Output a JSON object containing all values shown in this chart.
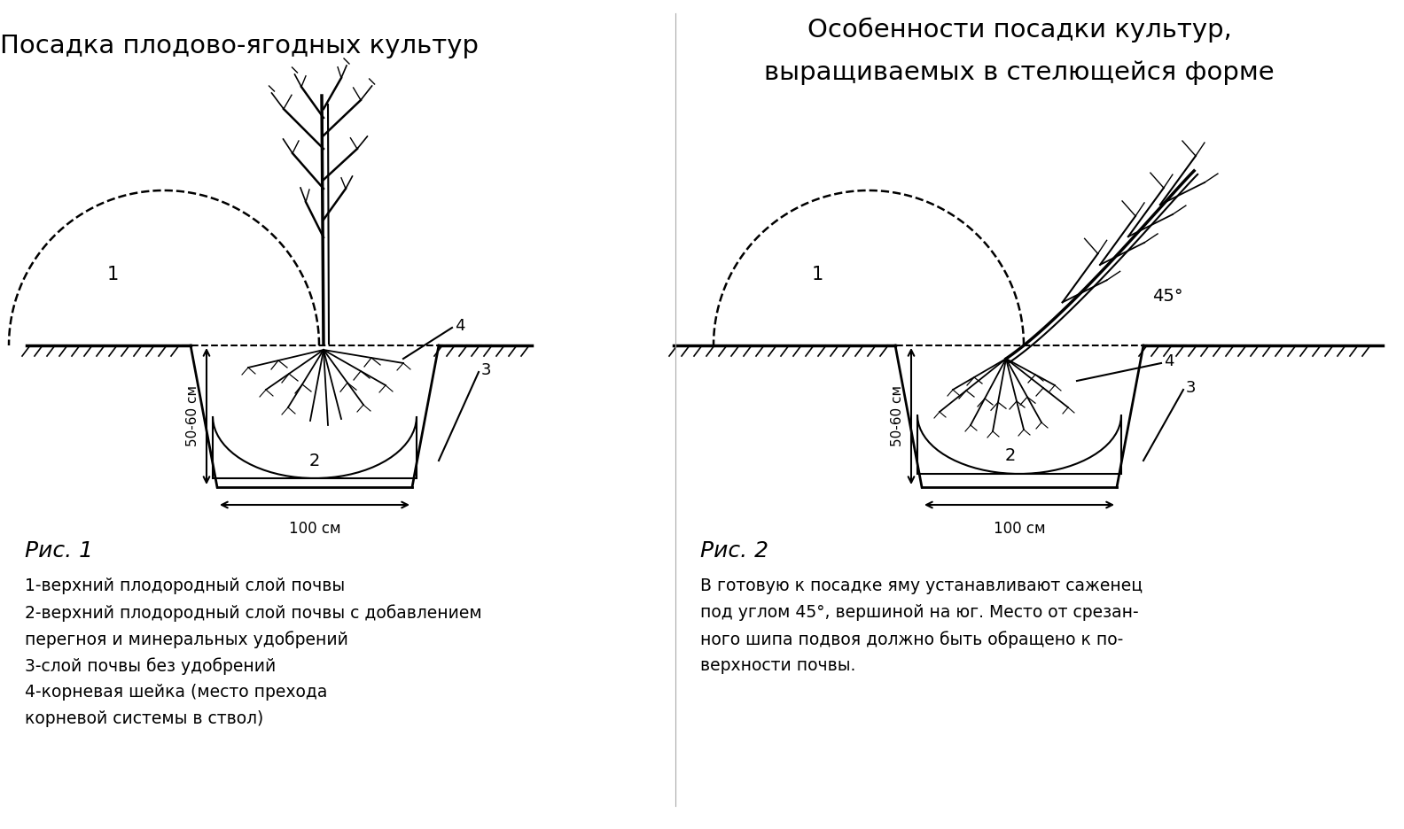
{
  "title1": "Посадка плодово-ягодных культур",
  "title2_line1": "Особенности посадки культур,",
  "title2_line2": "выращиваемых в стелющейся форме",
  "fig1_label": "Рис. 1",
  "fig2_label": "Рис. 2",
  "legend1": [
    "1-верхний плодородный слой почвы",
    "2-верхний плодородный слой почвы с добавлением",
    "перегноя и минеральных удобрений",
    "3-слой почвы без удобрений",
    "4-корневая шейка (место прехода",
    "корневой системы в ствол)"
  ],
  "legend2": "В готовую к посадке яму устанавливают саженец\nпод углом 45°, вершиной на юг. Место от срезан-\nного шипа подвоя должно быть обращено к по-\nверхности почвы.",
  "bg_color": "#ffffff",
  "text_color": "#000000",
  "line_color": "#000000",
  "depth_label": "50-60 см",
  "width_label": "100 см",
  "label_1": "1",
  "label_2": "2",
  "label_3": "3",
  "label_4": "4",
  "label_45": "45°"
}
